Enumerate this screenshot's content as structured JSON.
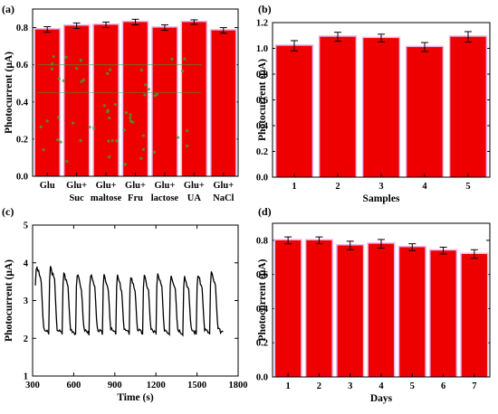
{
  "chart_data": [
    {
      "panel": "(a)",
      "type": "bar",
      "categories": [
        "Glu",
        "Glu+ Suc",
        "Glu+ maltose",
        "Glu+ Fru",
        "Glu+ lactose",
        "Glu+ UA",
        "Glu+ NaCl"
      ],
      "category_lines": [
        [
          "Glu"
        ],
        [
          "Glu+",
          "Suc"
        ],
        [
          "Glu+",
          "maltose"
        ],
        [
          "Glu+",
          "Fru"
        ],
        [
          "Glu+",
          "lactose"
        ],
        [
          "Glu+",
          "UA"
        ],
        [
          "Glu+",
          "NaCl"
        ]
      ],
      "values": [
        0.79,
        0.81,
        0.815,
        0.83,
        0.8,
        0.83,
        0.785
      ],
      "errors": [
        0.015,
        0.015,
        0.015,
        0.015,
        0.015,
        0.012,
        0.015
      ],
      "ylabel": "Photocurrent (μA)",
      "xlabel": "",
      "ylim": [
        0,
        0.9
      ],
      "yticks": [
        0.0,
        0.2,
        0.4,
        0.6,
        0.8
      ],
      "ytick_labels": [
        "0.0",
        "0.2",
        "0.4",
        "0.6",
        "0.8"
      ],
      "grid": false
    },
    {
      "panel": "(b)",
      "type": "bar",
      "categories": [
        "1",
        "2",
        "3",
        "4",
        "5"
      ],
      "values": [
        1.02,
        1.09,
        1.08,
        1.01,
        1.09
      ],
      "errors": [
        0.04,
        0.035,
        0.03,
        0.035,
        0.04
      ],
      "ylabel": "Photocurrent (μA)",
      "xlabel": "Samples",
      "ylim": [
        0,
        1.2
      ],
      "yticks": [
        0.0,
        0.2,
        0.4,
        0.6,
        0.8,
        1.0,
        1.2
      ],
      "ytick_labels": [
        "0.0",
        "0.2",
        "0.4",
        "0.6",
        "0.8",
        "1.0",
        "1.2"
      ],
      "grid": false
    },
    {
      "panel": "(c)",
      "type": "line",
      "ylabel": "Photocurrent (μA)",
      "xlabel": "Time (s)",
      "xlim": [
        300,
        1800
      ],
      "ylim": [
        1,
        5
      ],
      "xticks": [
        300,
        600,
        900,
        1200,
        1500,
        1800
      ],
      "yticks": [
        1,
        2,
        3,
        4,
        5
      ],
      "xtick_labels": [
        "300",
        "600",
        "900",
        "1200",
        "1500",
        "1800"
      ],
      "ytick_labels": [
        "1",
        "2",
        "3",
        "4",
        "5"
      ],
      "series": [
        {
          "start_time": 320,
          "end_time": 1690,
          "cycles": 14,
          "on_values": [
            3.95,
            3.95,
            3.8,
            3.75,
            3.75,
            3.75,
            3.7,
            3.7,
            3.7,
            3.75,
            3.75,
            3.7,
            3.75,
            3.8
          ],
          "off_value": 2.1,
          "initial_value": 3.4
        }
      ],
      "grid": false
    },
    {
      "panel": "(d)",
      "type": "bar",
      "categories": [
        "1",
        "2",
        "3",
        "4",
        "5",
        "6",
        "7"
      ],
      "values": [
        0.8,
        0.8,
        0.77,
        0.78,
        0.76,
        0.74,
        0.72
      ],
      "errors": [
        0.02,
        0.02,
        0.025,
        0.025,
        0.02,
        0.02,
        0.025
      ],
      "ylabel": "Photocurrent (μA)",
      "xlabel": "Days",
      "ylim": [
        0,
        0.9
      ],
      "yticks": [
        0.0,
        0.2,
        0.4,
        0.6,
        0.8
      ],
      "ytick_labels": [
        "0.0",
        "0.2",
        "0.4",
        "0.6",
        "0.8"
      ],
      "grid": false
    }
  ],
  "colors": {
    "bar": "#ee0000",
    "bar_glow": "#e9b8e9",
    "line": "#000000",
    "axis": "#000000",
    "dots": "#3aa43a"
  }
}
